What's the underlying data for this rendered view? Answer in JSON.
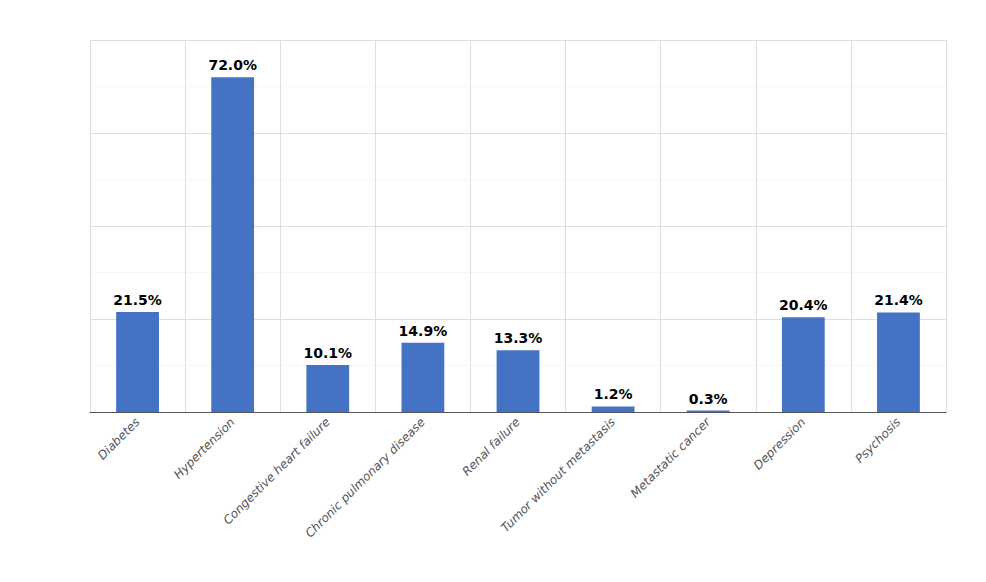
{
  "chart_data": {
    "type": "bar",
    "categories": [
      "Diabetes",
      "Hypertension",
      "Congestive heart failure",
      "Chronic pulmonary disease",
      "Renal failure",
      "Tumor without metastasis",
      "Metastatic cancer",
      "Depression",
      "Psychosis"
    ],
    "values": [
      21.5,
      72.0,
      10.1,
      14.9,
      13.3,
      1.2,
      0.3,
      20.4,
      21.4
    ],
    "value_labels": [
      "21.5%",
      "72.0%",
      "10.1%",
      "14.9%",
      "13.3%",
      "1.2%",
      "0.3%",
      "20.4%",
      "21.4%"
    ],
    "data_labels": true,
    "color": "#4472C4",
    "ylim": [
      0,
      80
    ],
    "yticks": [
      0,
      20,
      40,
      60,
      80
    ],
    "grid": true,
    "tick_labels": "x"
  }
}
